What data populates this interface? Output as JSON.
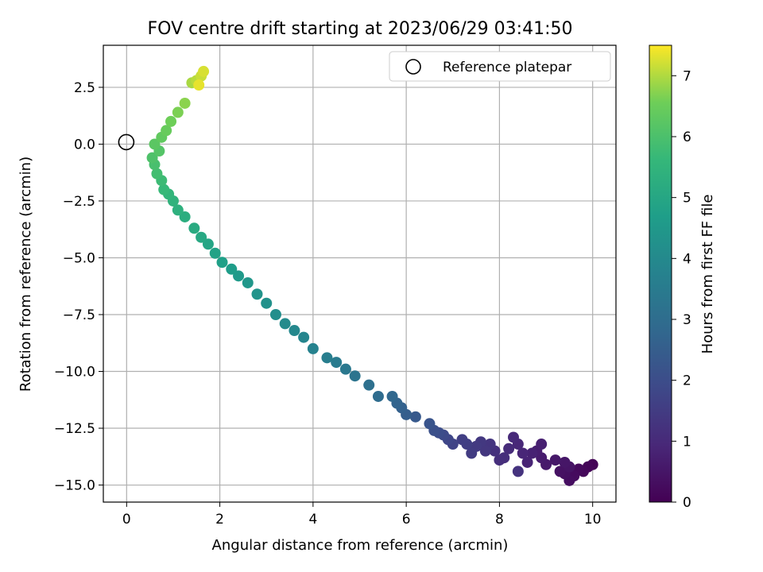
{
  "chart_data": {
    "type": "scatter",
    "title": "FOV centre drift starting at 2023/06/29 03:41:50",
    "xlabel": "Angular distance from reference (arcmin)",
    "ylabel": "Rotation from reference (arcmin)",
    "xlim": [
      -0.5,
      10.5
    ],
    "ylim": [
      -15.75,
      4.35
    ],
    "xticks": [
      0,
      2,
      4,
      6,
      8,
      10
    ],
    "xtick_labels": [
      "0",
      "2",
      "4",
      "6",
      "8",
      "10"
    ],
    "yticks": [
      2.5,
      0.0,
      -2.5,
      -5.0,
      -7.5,
      -10.0,
      -12.5,
      -15.0
    ],
    "ytick_labels": [
      "2.5",
      "0.0",
      "−2.5",
      "−5.0",
      "−7.5",
      "−10.0",
      "−12.5",
      "−15.0"
    ],
    "grid": true,
    "legend": {
      "placement": "top-right",
      "entries": [
        "Reference platepar"
      ]
    },
    "reference_point": {
      "x": 0,
      "y": 0,
      "label": "Reference platepar"
    },
    "colorbar": {
      "label": "Hours from first FF file",
      "colormap": "viridis",
      "range": [
        0,
        7.5
      ],
      "ticks": [
        0,
        1,
        2,
        3,
        4,
        5,
        6,
        7
      ],
      "tick_labels": [
        "0",
        "1",
        "2",
        "3",
        "4",
        "5",
        "6",
        "7"
      ]
    },
    "series": [
      {
        "columns": [
          "x",
          "y",
          "hours"
        ],
        "points": [
          [
            10.0,
            -14.1,
            0.05
          ],
          [
            9.9,
            -14.2,
            0.1
          ],
          [
            9.8,
            -14.4,
            0.15
          ],
          [
            9.7,
            -14.3,
            0.2
          ],
          [
            9.6,
            -14.6,
            0.25
          ],
          [
            9.5,
            -14.8,
            0.3
          ],
          [
            9.4,
            -14.5,
            0.35
          ],
          [
            9.3,
            -14.4,
            0.4
          ],
          [
            9.5,
            -14.2,
            0.45
          ],
          [
            9.4,
            -14.0,
            0.5
          ],
          [
            9.2,
            -13.9,
            0.55
          ],
          [
            9.0,
            -14.1,
            0.6
          ],
          [
            8.9,
            -13.8,
            0.65
          ],
          [
            8.8,
            -13.5,
            0.7
          ],
          [
            8.9,
            -13.2,
            0.75
          ],
          [
            8.7,
            -13.6,
            0.8
          ],
          [
            8.6,
            -14.0,
            0.85
          ],
          [
            8.5,
            -13.6,
            0.9
          ],
          [
            8.4,
            -13.2,
            0.95
          ],
          [
            8.3,
            -12.9,
            1.0
          ],
          [
            8.2,
            -13.4,
            1.05
          ],
          [
            8.1,
            -13.8,
            1.1
          ],
          [
            8.0,
            -13.9,
            1.15
          ],
          [
            7.9,
            -13.5,
            1.2
          ],
          [
            8.4,
            -14.4,
            1.25
          ],
          [
            7.8,
            -13.2,
            1.3
          ],
          [
            7.7,
            -13.5,
            1.35
          ],
          [
            7.6,
            -13.1,
            1.4
          ],
          [
            7.5,
            -13.3,
            1.45
          ],
          [
            7.4,
            -13.6,
            1.5
          ],
          [
            7.3,
            -13.2,
            1.55
          ],
          [
            7.2,
            -13.0,
            1.6
          ],
          [
            7.0,
            -13.2,
            1.7
          ],
          [
            6.9,
            -13.0,
            1.8
          ],
          [
            6.8,
            -12.8,
            1.9
          ],
          [
            6.7,
            -12.7,
            2.0
          ],
          [
            6.6,
            -12.6,
            2.1
          ],
          [
            6.5,
            -12.3,
            2.2
          ],
          [
            6.2,
            -12.0,
            2.35
          ],
          [
            6.0,
            -11.9,
            2.5
          ],
          [
            5.9,
            -11.6,
            2.6
          ],
          [
            5.8,
            -11.4,
            2.7
          ],
          [
            5.7,
            -11.1,
            2.8
          ],
          [
            5.4,
            -11.1,
            2.95
          ],
          [
            5.2,
            -10.6,
            3.1
          ],
          [
            4.9,
            -10.2,
            3.25
          ],
          [
            4.7,
            -9.9,
            3.4
          ],
          [
            4.5,
            -9.6,
            3.5
          ],
          [
            4.3,
            -9.4,
            3.6
          ],
          [
            4.0,
            -9.0,
            3.75
          ],
          [
            3.8,
            -8.5,
            3.85
          ],
          [
            3.6,
            -8.2,
            3.95
          ],
          [
            3.4,
            -7.9,
            4.05
          ],
          [
            3.2,
            -7.5,
            4.15
          ],
          [
            3.0,
            -7.0,
            4.25
          ],
          [
            2.8,
            -6.6,
            4.35
          ],
          [
            2.6,
            -6.1,
            4.45
          ],
          [
            2.4,
            -5.8,
            4.55
          ],
          [
            2.25,
            -5.5,
            4.65
          ],
          [
            2.05,
            -5.2,
            4.75
          ],
          [
            1.9,
            -4.8,
            4.85
          ],
          [
            1.75,
            -4.4,
            4.95
          ],
          [
            1.6,
            -4.1,
            5.05
          ],
          [
            1.45,
            -3.7,
            5.15
          ],
          [
            1.25,
            -3.2,
            5.25
          ],
          [
            1.1,
            -2.9,
            5.35
          ],
          [
            1.0,
            -2.5,
            5.45
          ],
          [
            0.9,
            -2.2,
            5.55
          ],
          [
            0.8,
            -2.0,
            5.65
          ],
          [
            0.75,
            -1.6,
            5.75
          ],
          [
            0.65,
            -1.3,
            5.85
          ],
          [
            0.6,
            -0.9,
            5.95
          ],
          [
            0.55,
            -0.6,
            6.05
          ],
          [
            0.7,
            -0.3,
            6.15
          ],
          [
            0.6,
            0.0,
            6.25
          ],
          [
            0.75,
            0.3,
            6.35
          ],
          [
            0.85,
            0.6,
            6.45
          ],
          [
            0.95,
            1.0,
            6.55
          ],
          [
            1.1,
            1.4,
            6.65
          ],
          [
            1.25,
            1.8,
            6.75
          ],
          [
            1.4,
            2.7,
            6.95
          ],
          [
            1.5,
            2.8,
            7.05
          ],
          [
            1.6,
            3.0,
            7.15
          ],
          [
            1.65,
            3.2,
            7.25
          ],
          [
            1.55,
            2.6,
            7.35
          ]
        ]
      }
    ]
  }
}
